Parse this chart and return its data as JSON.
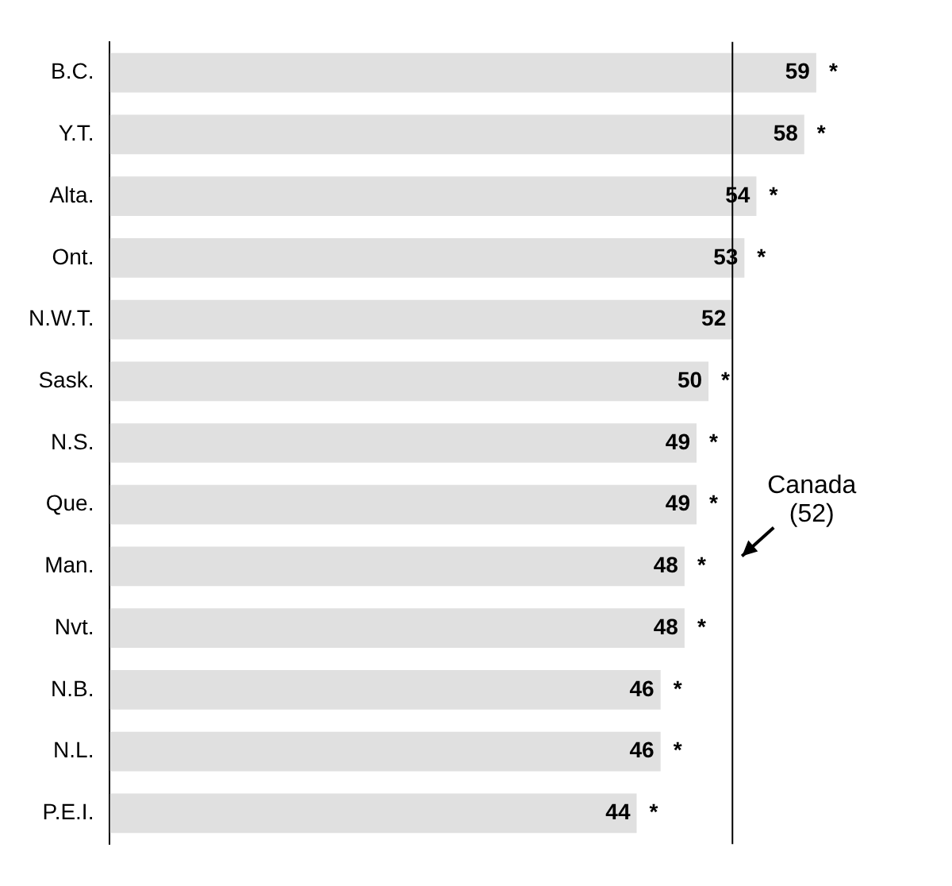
{
  "chart_data": {
    "type": "bar",
    "orientation": "horizontal",
    "categories": [
      "B.C.",
      "Y.T.",
      "Alta.",
      "Ont.",
      "N.W.T.",
      "Sask.",
      "N.S.",
      "Que.",
      "Man.",
      "Nvt.",
      "N.B.",
      "N.L.",
      "P.E.I."
    ],
    "values": [
      59,
      58,
      54,
      53,
      52,
      50,
      49,
      49,
      48,
      48,
      46,
      46,
      44
    ],
    "value_labels": [
      "59 *",
      "58 *",
      "54 *",
      "53 *",
      "52",
      "50 *",
      "49 *",
      "49 *",
      "48 *",
      "48 *",
      "46 *",
      "46 *",
      "44 *"
    ],
    "color": "#e0e0e0",
    "ref_lines": [
      {
        "axis": "x",
        "value": 52,
        "label": "Canada\n(52)",
        "color": "#000000"
      }
    ],
    "grid": false,
    "legend": false
  }
}
